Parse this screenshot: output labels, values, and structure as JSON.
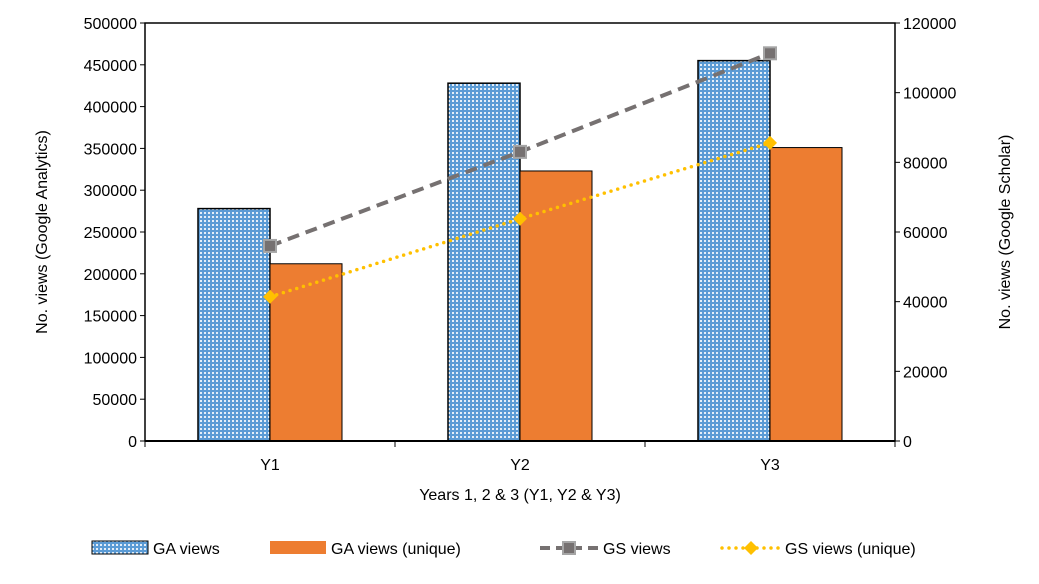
{
  "chart_data": {
    "type": "bar",
    "categories": [
      "Y1",
      "Y2",
      "Y3"
    ],
    "xlabel": "Years 1, 2 & 3 (Y1, Y2 & Y3)",
    "ylabel": "No. views (Google Analytics)",
    "y2label": "No. views (Google Scholar)",
    "ylim": [
      0,
      500000
    ],
    "y2lim": [
      0,
      120000
    ],
    "yticks": [
      "0",
      "50000",
      "100000",
      "150000",
      "200000",
      "250000",
      "300000",
      "350000",
      "400000",
      "450000",
      "500000"
    ],
    "y2ticks": [
      "0",
      "20000",
      "40000",
      "60000",
      "80000",
      "100000",
      "120000"
    ],
    "grid": false,
    "legend_position": "bottom",
    "series": [
      {
        "name": "GA views",
        "type": "bar",
        "axis": "left",
        "color": "#5b9bd5",
        "pattern": "dotted-grid",
        "values": [
          278000,
          428000,
          455000
        ]
      },
      {
        "name": "GA views (unique)",
        "type": "bar",
        "axis": "left",
        "color": "#ed7d31",
        "values": [
          212000,
          323000,
          351000
        ]
      },
      {
        "name": "GS views",
        "type": "line",
        "axis": "right",
        "color": "#767171",
        "line_style": "dashed",
        "marker": "square",
        "values": [
          56000,
          83000,
          111300
        ]
      },
      {
        "name": "GS views (unique)",
        "type": "line",
        "axis": "right",
        "color": "#ffc000",
        "line_style": "dotted",
        "marker": "diamond",
        "values": [
          41400,
          63800,
          85600
        ]
      }
    ]
  }
}
